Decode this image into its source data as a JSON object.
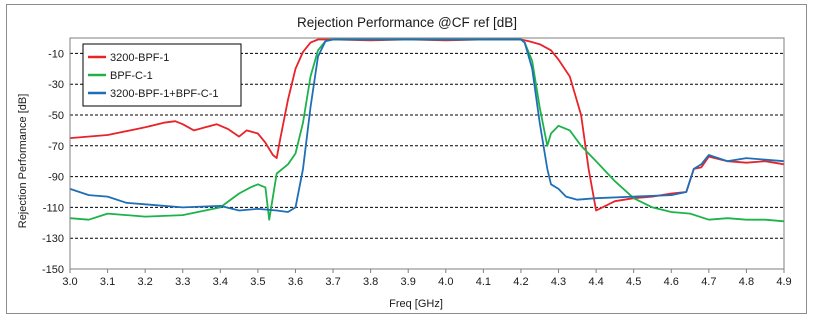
{
  "chart_data": {
    "type": "line",
    "title": "Rejection Performance @CF ref [dB]",
    "xlabel": "Freq [GHz]",
    "ylabel": "Rejection Performance [dB]",
    "xlim": [
      3.0,
      4.9
    ],
    "ylim": [
      -150,
      0
    ],
    "xticks": [
      3.0,
      3.1,
      3.2,
      3.3,
      3.4,
      3.5,
      3.6,
      3.7,
      3.8,
      3.9,
      4.0,
      4.1,
      4.2,
      4.3,
      4.4,
      4.5,
      4.6,
      4.7,
      4.8,
      4.9
    ],
    "xtick_labels": [
      "3.0",
      "3.1",
      "3.2",
      "3.3",
      "3.4",
      "3.5",
      "3.6",
      "3.7",
      "3.8",
      "3.9",
      "4.0",
      "4.1",
      "4.2",
      "4.3",
      "4.4",
      "4.5",
      "4.6",
      "4.7",
      "4.8",
      "4.9"
    ],
    "yticks": [
      -10,
      -30,
      -50,
      -70,
      -90,
      -110,
      -130,
      -150
    ],
    "ytick_labels": [
      "-10",
      "-30",
      "-50",
      "-70",
      "-90",
      "-110",
      "-130",
      "-150"
    ],
    "grid": "horizontal dashed",
    "legend_position": "top-left",
    "series": [
      {
        "name": "3200-BPF-1",
        "color": "#e8232a",
        "x": [
          3.0,
          3.1,
          3.2,
          3.25,
          3.28,
          3.3,
          3.33,
          3.36,
          3.39,
          3.42,
          3.45,
          3.47,
          3.5,
          3.52,
          3.54,
          3.55,
          3.56,
          3.58,
          3.6,
          3.62,
          3.64,
          3.66,
          3.68,
          3.7,
          3.8,
          3.9,
          4.0,
          4.1,
          4.2,
          4.22,
          4.25,
          4.28,
          4.3,
          4.33,
          4.36,
          4.38,
          4.4,
          4.45,
          4.5,
          4.55,
          4.6,
          4.64,
          4.66,
          4.68,
          4.7,
          4.75,
          4.8,
          4.85,
          4.9
        ],
        "y": [
          -65,
          -63,
          -58,
          -55,
          -54,
          -56,
          -60,
          -58,
          -56,
          -59,
          -64,
          -60,
          -62,
          -68,
          -76,
          -78,
          -65,
          -40,
          -20,
          -9,
          -3,
          -1,
          -1,
          -1,
          -1.5,
          -1,
          -1.5,
          -1,
          -1,
          -2,
          -4,
          -8,
          -14,
          -25,
          -50,
          -85,
          -112,
          -106,
          -104,
          -103,
          -101,
          -100,
          -85,
          -84,
          -77,
          -80,
          -81,
          -80,
          -82
        ]
      },
      {
        "name": "BPF-C-1",
        "color": "#1db34a",
        "x": [
          3.0,
          3.05,
          3.1,
          3.2,
          3.3,
          3.4,
          3.45,
          3.48,
          3.5,
          3.52,
          3.53,
          3.55,
          3.58,
          3.6,
          3.62,
          3.64,
          3.66,
          3.68,
          3.7,
          3.8,
          3.9,
          4.0,
          4.1,
          4.2,
          4.21,
          4.23,
          4.25,
          4.27,
          4.28,
          4.3,
          4.33,
          4.36,
          4.4,
          4.45,
          4.5,
          4.55,
          4.6,
          4.65,
          4.7,
          4.75,
          4.8,
          4.85,
          4.9
        ],
        "y": [
          -117,
          -118,
          -114,
          -116,
          -115,
          -110,
          -101,
          -97,
          -95,
          -97,
          -118,
          -88,
          -82,
          -75,
          -55,
          -25,
          -8,
          -2,
          -1,
          -1,
          -1,
          -1,
          -1,
          -1,
          -3,
          -15,
          -45,
          -70,
          -62,
          -57,
          -60,
          -70,
          -80,
          -93,
          -104,
          -110,
          -113,
          -114,
          -118,
          -117,
          -118,
          -118,
          -119
        ]
      },
      {
        "name": "3200-BPF-1+BPF-C-1",
        "color": "#1e6fb8",
        "x": [
          3.0,
          3.05,
          3.1,
          3.15,
          3.2,
          3.3,
          3.4,
          3.45,
          3.5,
          3.55,
          3.58,
          3.6,
          3.62,
          3.64,
          3.66,
          3.68,
          3.7,
          3.8,
          3.9,
          4.0,
          4.1,
          4.2,
          4.21,
          4.23,
          4.25,
          4.27,
          4.28,
          4.3,
          4.32,
          4.35,
          4.4,
          4.5,
          4.6,
          4.64,
          4.66,
          4.68,
          4.7,
          4.75,
          4.8,
          4.85,
          4.9
        ],
        "y": [
          -98,
          -102,
          -103,
          -107,
          -108,
          -110,
          -109,
          -112,
          -111,
          -112,
          -113,
          -110,
          -85,
          -45,
          -12,
          -2,
          -1,
          -1,
          -1,
          -1,
          -1,
          -1,
          -3,
          -20,
          -55,
          -85,
          -95,
          -98,
          -103,
          -105,
          -104,
          -103,
          -102,
          -100,
          -85,
          -82,
          -76,
          -80,
          -78,
          -79,
          -80
        ]
      }
    ]
  }
}
